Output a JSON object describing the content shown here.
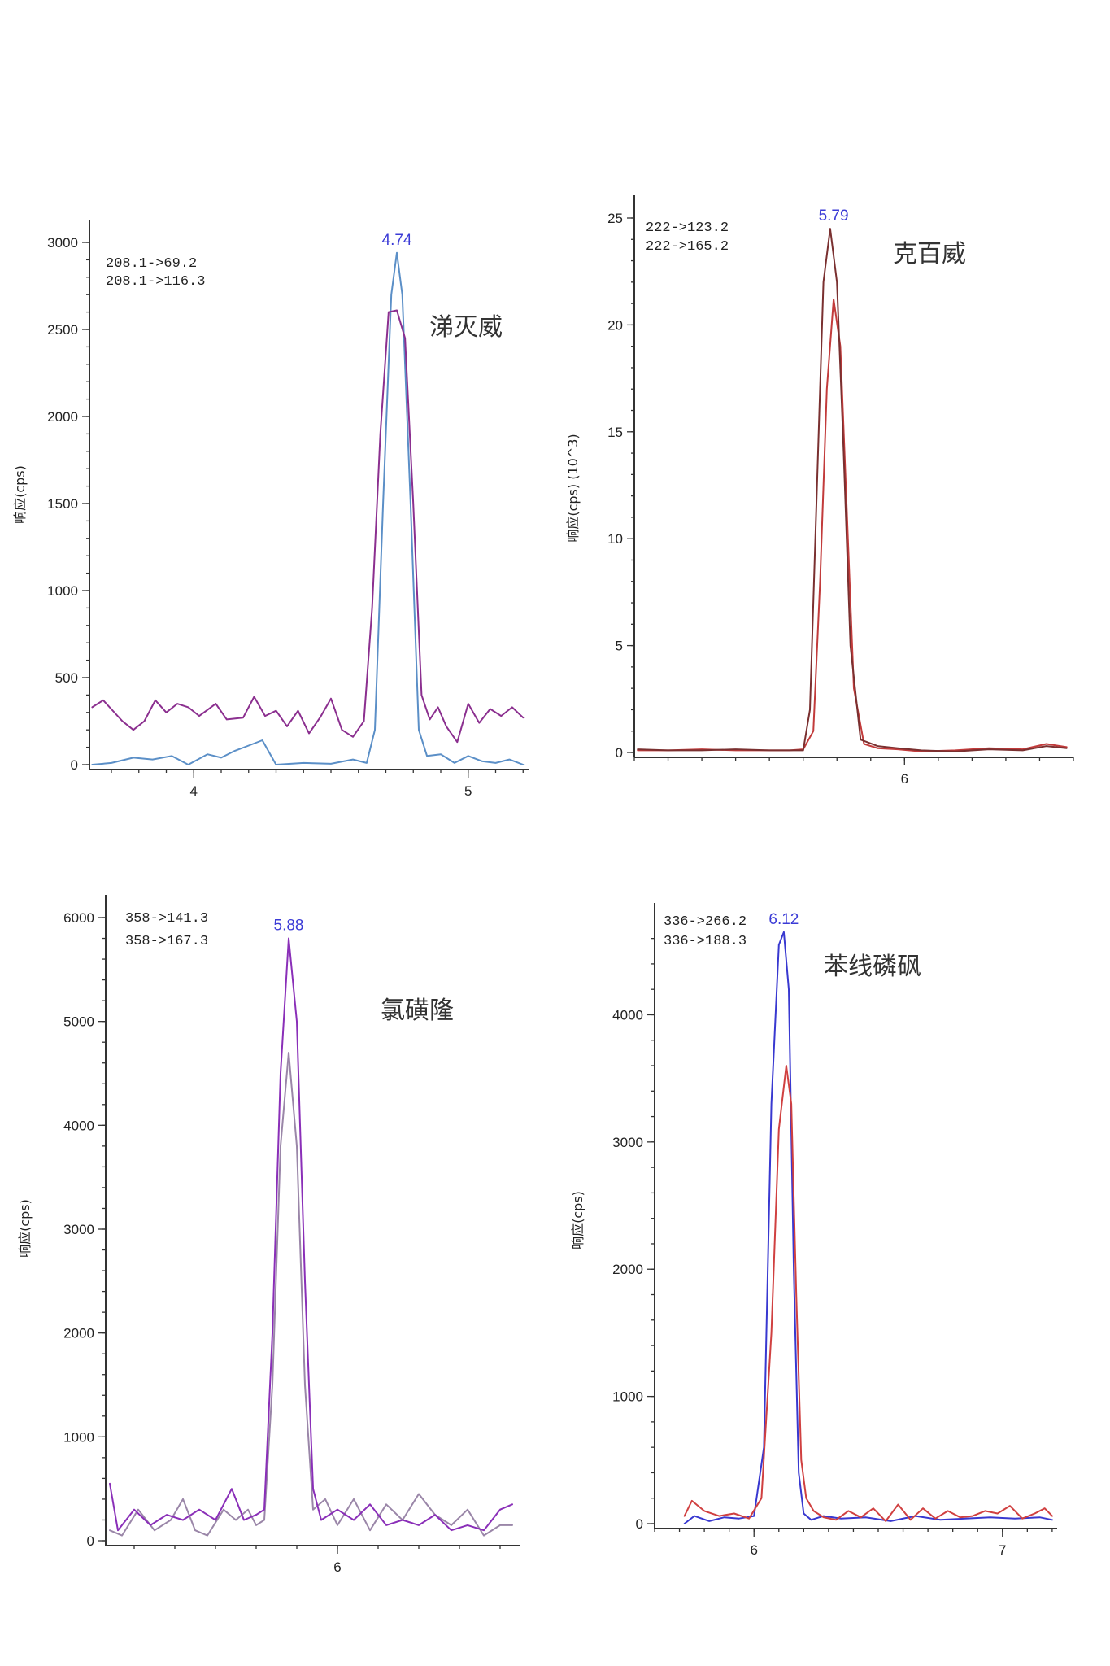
{
  "chart_data": [
    {
      "type": "line",
      "compound": "涕灭威",
      "ylabel": "响应(cps)",
      "xlim": [
        3.62,
        5.22
      ],
      "ylim": [
        0,
        3000
      ],
      "xticks": [
        4,
        5
      ],
      "xtick_labels": [
        "4",
        "5"
      ],
      "yticks": [
        0,
        500,
        1000,
        1500,
        2000,
        2500,
        3000
      ],
      "ytick_labels": [
        "0",
        "500",
        "1000",
        "1500",
        "2000",
        "2500",
        "3000"
      ],
      "peak_label": "4.74",
      "peak_rt": 4.74,
      "transitions": [
        "208.1->69.2",
        "208.1->116.3"
      ],
      "series": [
        {
          "color": "#5b8fc7",
          "x": [
            3.63,
            3.7,
            3.78,
            3.85,
            3.92,
            3.98,
            4.05,
            4.1,
            4.15,
            4.2,
            4.25,
            4.3,
            4.4,
            4.5,
            4.58,
            4.63,
            4.66,
            4.69,
            4.72,
            4.74,
            4.76,
            4.79,
            4.82,
            4.85,
            4.9,
            4.95,
            5.0,
            5.05,
            5.1,
            5.15,
            5.2
          ],
          "y": [
            0,
            10,
            40,
            30,
            50,
            0,
            60,
            40,
            80,
            110,
            140,
            0,
            10,
            5,
            30,
            10,
            200,
            1500,
            2700,
            2940,
            2700,
            1500,
            200,
            50,
            60,
            10,
            50,
            20,
            10,
            30,
            0
          ]
        },
        {
          "color": "#8b2f8f",
          "x": [
            3.63,
            3.67,
            3.74,
            3.78,
            3.82,
            3.86,
            3.9,
            3.94,
            3.98,
            4.02,
            4.08,
            4.12,
            4.18,
            4.22,
            4.26,
            4.3,
            4.34,
            4.38,
            4.42,
            4.46,
            4.5,
            4.54,
            4.58,
            4.62,
            4.65,
            4.68,
            4.71,
            4.74,
            4.77,
            4.8,
            4.83,
            4.86,
            4.89,
            4.92,
            4.96,
            5.0,
            5.04,
            5.08,
            5.12,
            5.16,
            5.2
          ],
          "y": [
            330,
            370,
            250,
            200,
            250,
            370,
            300,
            350,
            330,
            280,
            350,
            260,
            270,
            390,
            280,
            310,
            220,
            310,
            180,
            270,
            380,
            200,
            160,
            250,
            900,
            1900,
            2600,
            2610,
            2450,
            1500,
            400,
            260,
            330,
            220,
            130,
            350,
            240,
            320,
            280,
            330,
            270
          ]
        }
      ]
    },
    {
      "type": "line",
      "compound": "克百威",
      "ylabel": "响应(cps) (10^3)",
      "xlim": [
        5.2,
        6.5
      ],
      "ylim": [
        0,
        25
      ],
      "xticks": [
        6
      ],
      "xtick_labels": [
        "6"
      ],
      "yticks": [
        0,
        5,
        10,
        15,
        20,
        25
      ],
      "ytick_labels": [
        "0",
        "5",
        "10",
        "15",
        "20",
        "25"
      ],
      "peak_label": "5.79",
      "peak_rt": 5.79,
      "transitions": [
        "222->123.2",
        "222->165.2"
      ],
      "series": [
        {
          "color": "#c23b3b",
          "x": [
            5.21,
            5.3,
            5.4,
            5.5,
            5.6,
            5.66,
            5.7,
            5.73,
            5.75,
            5.77,
            5.79,
            5.81,
            5.83,
            5.85,
            5.88,
            5.92,
            5.98,
            6.05,
            6.15,
            6.25,
            6.35,
            6.42,
            6.48
          ],
          "y": [
            0.1,
            0.1,
            0.15,
            0.1,
            0.1,
            0.1,
            0.15,
            1,
            8,
            17,
            21.2,
            19,
            11,
            3,
            0.4,
            0.2,
            0.15,
            0.05,
            0.1,
            0.2,
            0.15,
            0.4,
            0.25
          ]
        },
        {
          "color": "#7a3030",
          "x": [
            5.21,
            5.3,
            5.4,
            5.5,
            5.6,
            5.66,
            5.7,
            5.72,
            5.74,
            5.76,
            5.78,
            5.8,
            5.82,
            5.84,
            5.87,
            5.92,
            5.98,
            6.05,
            6.15,
            6.25,
            6.35,
            6.42,
            6.48
          ],
          "y": [
            0.15,
            0.1,
            0.1,
            0.15,
            0.1,
            0.1,
            0.1,
            2,
            12,
            22,
            24.5,
            22,
            14,
            5,
            0.6,
            0.3,
            0.2,
            0.1,
            0.05,
            0.15,
            0.1,
            0.3,
            0.2
          ]
        }
      ]
    },
    {
      "type": "line",
      "compound": "氯磺隆",
      "ylabel": "响应(cps)",
      "xlim": [
        5.43,
        6.45
      ],
      "ylim": [
        0,
        6000
      ],
      "xticks": [
        6
      ],
      "xtick_labels": [
        "6"
      ],
      "yticks": [
        0,
        1000,
        2000,
        3000,
        4000,
        5000,
        6000
      ],
      "ytick_labels": [
        "0",
        "1000",
        "2000",
        "3000",
        "4000",
        "5000",
        "6000"
      ],
      "peak_label": "5.88",
      "peak_rt": 5.88,
      "transitions": [
        "358->141.3",
        "358->167.3"
      ],
      "series": [
        {
          "color": "#9a86a8",
          "x": [
            5.44,
            5.47,
            5.51,
            5.55,
            5.59,
            5.62,
            5.65,
            5.68,
            5.72,
            5.75,
            5.78,
            5.8,
            5.82,
            5.84,
            5.86,
            5.88,
            5.9,
            5.92,
            5.94,
            5.97,
            6.0,
            6.04,
            6.08,
            6.12,
            6.16,
            6.2,
            6.24,
            6.28,
            6.32,
            6.36,
            6.4,
            6.43
          ],
          "y": [
            100,
            50,
            300,
            100,
            200,
            400,
            100,
            50,
            300,
            200,
            300,
            150,
            200,
            1500,
            3800,
            4700,
            3800,
            1500,
            300,
            400,
            150,
            400,
            100,
            350,
            200,
            450,
            250,
            150,
            300,
            50,
            150,
            150
          ]
        },
        {
          "color": "#8a2fb8",
          "x": [
            5.44,
            5.46,
            5.5,
            5.54,
            5.58,
            5.62,
            5.66,
            5.7,
            5.74,
            5.77,
            5.8,
            5.82,
            5.84,
            5.86,
            5.88,
            5.9,
            5.92,
            5.94,
            5.96,
            6.0,
            6.04,
            6.08,
            6.12,
            6.16,
            6.2,
            6.24,
            6.28,
            6.32,
            6.36,
            6.4,
            6.43
          ],
          "y": [
            550,
            100,
            300,
            150,
            250,
            200,
            300,
            200,
            500,
            200,
            250,
            300,
            2000,
            4500,
            5800,
            5000,
            2500,
            500,
            200,
            300,
            200,
            350,
            150,
            200,
            150,
            250,
            100,
            150,
            100,
            300,
            350
          ]
        }
      ]
    },
    {
      "type": "line",
      "compound": "苯线磷砜",
      "ylabel": "响应(cps)",
      "xlim": [
        5.6,
        7.22
      ],
      "ylim": [
        0,
        4700
      ],
      "xticks": [
        6,
        7
      ],
      "xtick_labels": [
        "6",
        "7"
      ],
      "yticks": [
        0,
        1000,
        2000,
        3000,
        4000
      ],
      "ytick_labels": [
        "0",
        "1000",
        "2000",
        "3000",
        "4000"
      ],
      "peak_label": "6.12",
      "peak_rt": 6.12,
      "transitions": [
        "336->266.2",
        "336->188.3"
      ],
      "series": [
        {
          "color": "#3838d0",
          "x": [
            5.72,
            5.76,
            5.82,
            5.88,
            5.94,
            6.0,
            6.04,
            6.07,
            6.1,
            6.12,
            6.14,
            6.16,
            6.18,
            6.2,
            6.23,
            6.28,
            6.35,
            6.45,
            6.55,
            6.65,
            6.75,
            6.85,
            6.95,
            7.05,
            7.15,
            7.2
          ],
          "y": [
            0,
            60,
            20,
            50,
            40,
            60,
            600,
            3300,
            4550,
            4650,
            4200,
            2000,
            400,
            80,
            30,
            60,
            40,
            50,
            20,
            60,
            30,
            40,
            50,
            40,
            50,
            30
          ]
        },
        {
          "color": "#d04040",
          "x": [
            5.72,
            5.75,
            5.8,
            5.86,
            5.92,
            5.98,
            6.03,
            6.07,
            6.1,
            6.13,
            6.15,
            6.17,
            6.19,
            6.21,
            6.24,
            6.28,
            6.33,
            6.38,
            6.43,
            6.48,
            6.53,
            6.58,
            6.63,
            6.68,
            6.73,
            6.78,
            6.83,
            6.88,
            6.93,
            6.98,
            7.03,
            7.08,
            7.13,
            7.17,
            7.2
          ],
          "y": [
            60,
            180,
            100,
            60,
            80,
            40,
            200,
            1500,
            3100,
            3600,
            3300,
            1800,
            500,
            200,
            100,
            50,
            30,
            100,
            50,
            120,
            20,
            150,
            30,
            120,
            40,
            100,
            50,
            60,
            100,
            80,
            140,
            40,
            80,
            120,
            60
          ]
        }
      ]
    }
  ]
}
